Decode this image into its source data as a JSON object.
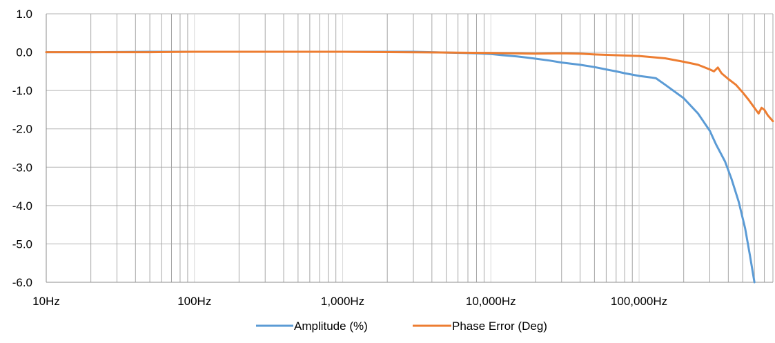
{
  "chart_data": {
    "type": "line",
    "x_scale": "log",
    "xlim": [
      10,
      800000
    ],
    "ylim": [
      -6.0,
      1.0
    ],
    "x_ticks": [
      {
        "value": 10,
        "label": "10Hz"
      },
      {
        "value": 100,
        "label": "100Hz"
      },
      {
        "value": 1000,
        "label": "1,000Hz"
      },
      {
        "value": 10000,
        "label": "10,000Hz"
      },
      {
        "value": 100000,
        "label": "100,000Hz"
      }
    ],
    "y_ticks": [
      {
        "value": 1.0,
        "label": "1.0"
      },
      {
        "value": 0.0,
        "label": "0.0"
      },
      {
        "value": -1.0,
        "label": "-1.0"
      },
      {
        "value": -2.0,
        "label": "-2.0"
      },
      {
        "value": -3.0,
        "label": "-3.0"
      },
      {
        "value": -4.0,
        "label": "-4.0"
      },
      {
        "value": -5.0,
        "label": "-5.0"
      },
      {
        "value": -6.0,
        "label": "-6.0"
      }
    ],
    "grid": {
      "x_major": true,
      "x_minor": true,
      "y_major": true
    },
    "legend": "bottom-center",
    "series": [
      {
        "name": "Amplitude (%)",
        "color": "#5B9BD5",
        "points": [
          [
            10,
            0.0
          ],
          [
            20,
            0.0
          ],
          [
            50,
            0.01
          ],
          [
            100,
            0.01
          ],
          [
            200,
            0.01
          ],
          [
            500,
            0.01
          ],
          [
            1000,
            0.01
          ],
          [
            2000,
            0.01
          ],
          [
            3000,
            0.01
          ],
          [
            5000,
            -0.01
          ],
          [
            8000,
            -0.03
          ],
          [
            10000,
            -0.05
          ],
          [
            12000,
            -0.08
          ],
          [
            15000,
            -0.11
          ],
          [
            20000,
            -0.17
          ],
          [
            25000,
            -0.22
          ],
          [
            30000,
            -0.27
          ],
          [
            40000,
            -0.33
          ],
          [
            50000,
            -0.39
          ],
          [
            60000,
            -0.45
          ],
          [
            70000,
            -0.5
          ],
          [
            80000,
            -0.55
          ],
          [
            100000,
            -0.62
          ],
          [
            120000,
            -0.66
          ],
          [
            130000,
            -0.68
          ],
          [
            150000,
            -0.85
          ],
          [
            200000,
            -1.2
          ],
          [
            250000,
            -1.6
          ],
          [
            300000,
            -2.05
          ],
          [
            330000,
            -2.4
          ],
          [
            380000,
            -2.85
          ],
          [
            420000,
            -3.3
          ],
          [
            470000,
            -3.9
          ],
          [
            520000,
            -4.6
          ],
          [
            560000,
            -5.3
          ],
          [
            600000,
            -6.0
          ]
        ]
      },
      {
        "name": "Phase Error (Deg)",
        "color": "#ED7D31",
        "points": [
          [
            10,
            0.0
          ],
          [
            50,
            0.0
          ],
          [
            100,
            0.01
          ],
          [
            500,
            0.01
          ],
          [
            1000,
            0.01
          ],
          [
            5000,
            -0.01
          ],
          [
            10000,
            -0.02
          ],
          [
            20000,
            -0.04
          ],
          [
            30000,
            -0.03
          ],
          [
            40000,
            -0.04
          ],
          [
            50000,
            -0.06
          ],
          [
            70000,
            -0.08
          ],
          [
            100000,
            -0.1
          ],
          [
            150000,
            -0.16
          ],
          [
            200000,
            -0.25
          ],
          [
            250000,
            -0.33
          ],
          [
            300000,
            -0.45
          ],
          [
            320000,
            -0.5
          ],
          [
            340000,
            -0.4
          ],
          [
            360000,
            -0.55
          ],
          [
            400000,
            -0.7
          ],
          [
            450000,
            -0.85
          ],
          [
            500000,
            -1.05
          ],
          [
            550000,
            -1.25
          ],
          [
            600000,
            -1.45
          ],
          [
            640000,
            -1.6
          ],
          [
            670000,
            -1.45
          ],
          [
            700000,
            -1.5
          ],
          [
            740000,
            -1.65
          ],
          [
            800000,
            -1.8
          ]
        ]
      }
    ]
  }
}
